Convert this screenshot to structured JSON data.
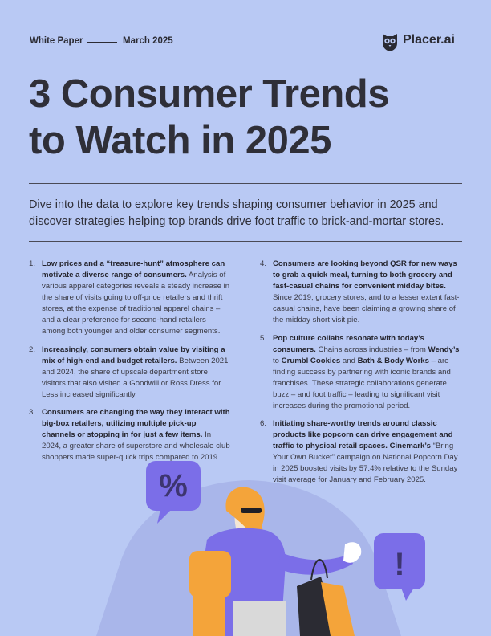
{
  "header": {
    "doc_type": "White Paper",
    "date": "March 2025",
    "brand": "Placer.ai"
  },
  "title": {
    "line1": "3 Consumer Trends",
    "line2": "to Watch in 2025"
  },
  "intro": "Dive into the data to explore key trends shaping consumer behavior in 2025 and discover strategies helping top brands drive foot traffic to brick-and-mortar stores.",
  "trends": [
    {
      "num": "1.",
      "bold": "Low prices and a “treasure-hunt” atmosphere can motivate a diverse range of consumers.",
      "text": " Analysis of various apparel categories reveals a steady increase in the share of visits going to off-price retailers and thrift stores, at the expense of traditional apparel chains – and a clear preference for second-hand retailers among both younger and older consumer segments."
    },
    {
      "num": "2.",
      "bold": "Increasingly, consumers obtain value by visiting a mix of high-end and budget retailers.",
      "text": " Between 2021 and 2024, the share of upscale department store visitors that also visited a Goodwill or Ross Dress for Less increased significantly."
    },
    {
      "num": "3.",
      "bold": "Consumers are changing the way they interact with big-box retailers, utilizing multiple pick-up channels or stopping in for just a few items.",
      "text": " In 2024, a greater share of superstore and wholesale club shoppers made super-quick trips compared to 2019."
    },
    {
      "num": "4.",
      "bold": "Consumers are looking beyond QSR for new ways to grab a quick meal, turning to both grocery and fast-casual chains for convenient midday bites.",
      "text": " Since 2019, grocery stores, and to a lesser extent fast-casual chains, have been claiming a growing share of the midday short visit pie."
    },
    {
      "num": "5.",
      "bold": "Pop culture collabs resonate with today’s consumers.",
      "text": " Chains across industries – from ",
      "b2": "Wendy’s",
      "t2": " to ",
      "b3": "Crumbl Cookies",
      "t3": " and ",
      "b4": "Bath & Body Works",
      "t4": " – are finding success by partnering with iconic brands and franchises. These strategic collaborations generate buzz – and foot traffic – leading to significant visit increases during the promotional period."
    },
    {
      "num": "6.",
      "bold": "Initiating share-worthy trends around classic products like popcorn can drive engagement and traffic to physical retail spaces.",
      "b2": " Cinemark’s",
      "text": " “Bring Your Own Bucket” campaign on National Popcorn Day in 2025 boosted visits by 57.4% relative to the Sunday visit average for January and February 2025."
    }
  ],
  "illustration": {
    "percent_bubble": "%",
    "exclaim_bubble": "!"
  },
  "colors": {
    "background": "#b9c9f4",
    "accent_purple": "#7b6ee8",
    "accent_orange": "#f4a43a",
    "text": "#2b2b33"
  }
}
